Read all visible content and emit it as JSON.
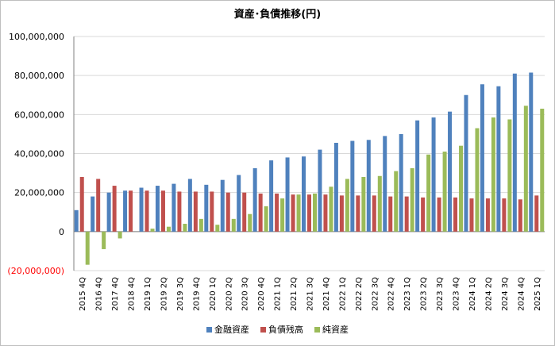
{
  "chart_data": {
    "type": "bar",
    "title": "資産･負債推移(円)",
    "xlabel": "",
    "ylabel": "",
    "ylim": [
      -20000000,
      100000000
    ],
    "yticks": [
      100000000,
      80000000,
      60000000,
      40000000,
      20000000,
      0,
      -20000000
    ],
    "ytick_labels": [
      "100,000,000",
      "80,000,000",
      "60,000,000",
      "40,000,000",
      "20,000,000",
      "0",
      "(20,000,000)"
    ],
    "grid": true,
    "legend": "bottom",
    "categories": [
      "2015 4Q",
      "2016 4Q",
      "2017 4Q",
      "2018 4Q",
      "2019 1Q",
      "2019 2Q",
      "2019 3Q",
      "2019 4Q",
      "2020 1Q",
      "2020 2Q",
      "2020 3Q",
      "2020 4Q",
      "2021 1Q",
      "2021 2Q",
      "2021 3Q",
      "2021 4Q",
      "2022 1Q",
      "2022 2Q",
      "2022 3Q",
      "2022 4Q",
      "2023 1Q",
      "2023 2Q",
      "2023 3Q",
      "2023 4Q",
      "2024 1Q",
      "2024 2Q",
      "2024 3Q",
      "2024 4Q",
      "2025 1Q"
    ],
    "series": [
      {
        "name": "金融資産",
        "color": "#4f81bd",
        "values": [
          11000000,
          18000000,
          20000000,
          21000000,
          22500000,
          23500000,
          24500000,
          27000000,
          24000000,
          26500000,
          29000000,
          32500000,
          36500000,
          38000000,
          38500000,
          42000000,
          45500000,
          46500000,
          47000000,
          49000000,
          50000000,
          57000000,
          58500000,
          61500000,
          70000000,
          75500000,
          74500000,
          81000000,
          81500000
        ]
      },
      {
        "name": "負債残高",
        "color": "#c0504d",
        "values": [
          28000000,
          27000000,
          23500000,
          21000000,
          21000000,
          21000000,
          20500000,
          20500000,
          20500000,
          20000000,
          20000000,
          19500000,
          19500000,
          19000000,
          19000000,
          19000000,
          18500000,
          18500000,
          18500000,
          18000000,
          18000000,
          17500000,
          17500000,
          17500000,
          17000000,
          17000000,
          17000000,
          16500000,
          18500000
        ]
      },
      {
        "name": "純資産",
        "color": "#9bbb59",
        "values": [
          -17000000,
          -9000000,
          -3500000,
          0,
          1500000,
          2500000,
          4000000,
          6500000,
          3500000,
          6500000,
          9000000,
          13000000,
          17000000,
          19000000,
          19500000,
          23000000,
          27000000,
          28000000,
          28500000,
          31000000,
          32500000,
          39500000,
          41000000,
          44000000,
          53000000,
          58500000,
          57500000,
          64500000,
          63000000
        ]
      }
    ]
  }
}
